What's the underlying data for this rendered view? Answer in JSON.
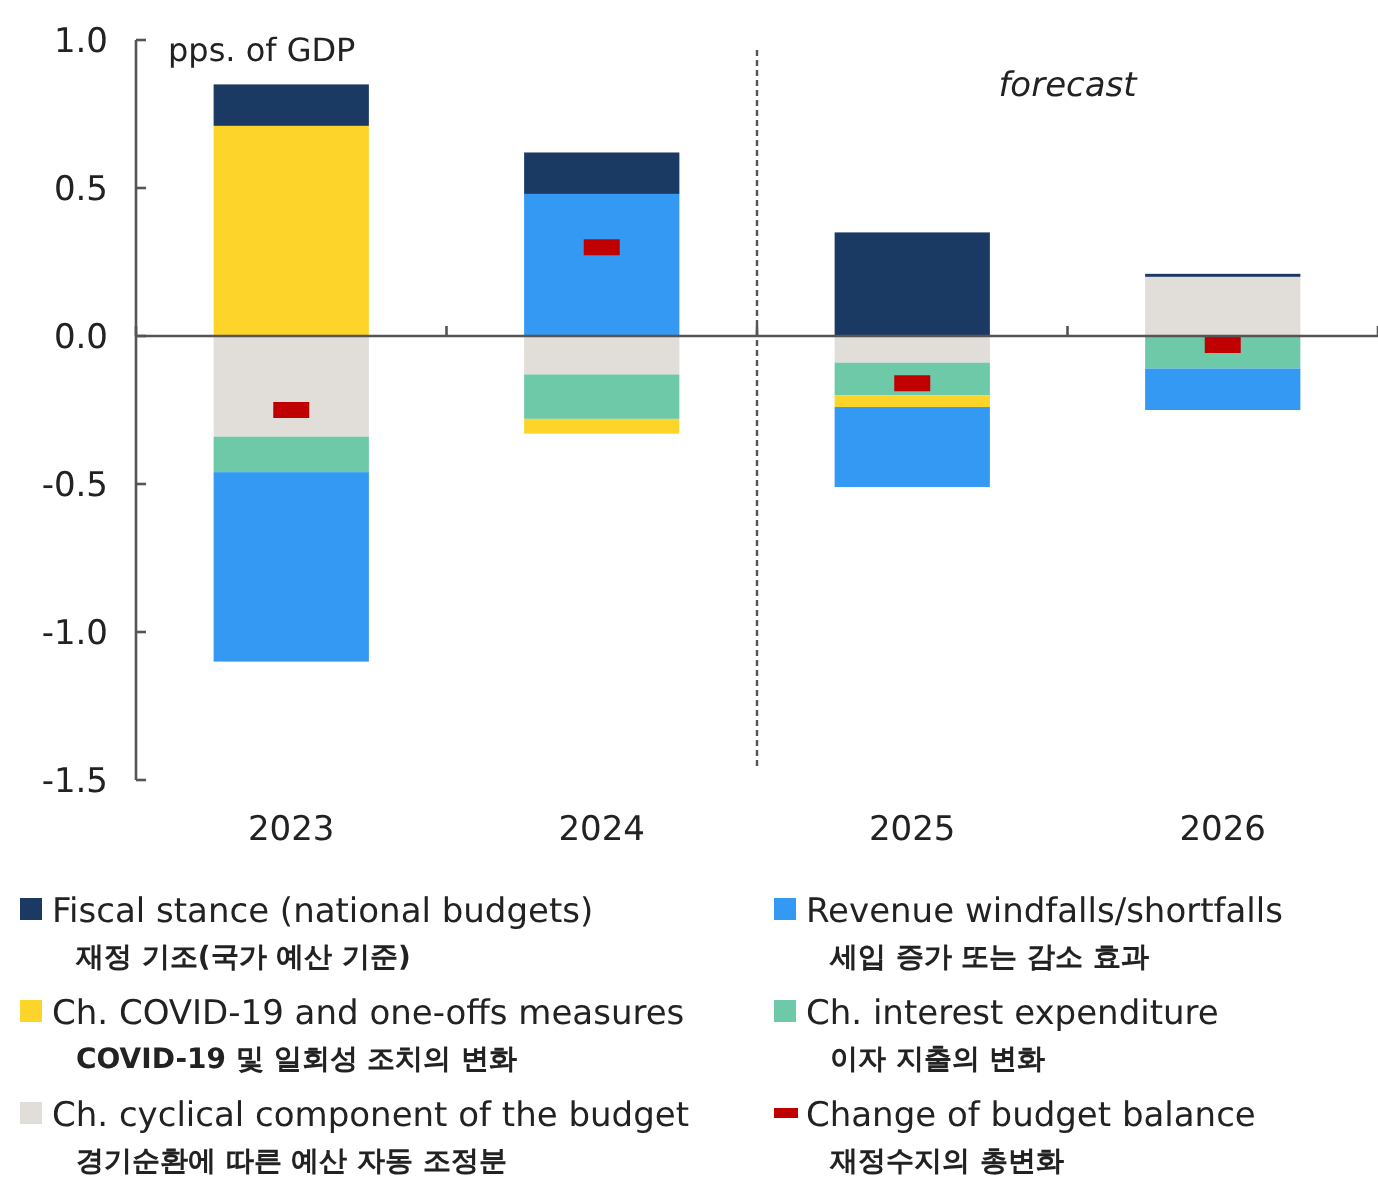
{
  "chart_data": {
    "type": "bar",
    "stacked": true,
    "ylabel": "pps. of GDP",
    "categories": [
      "2023",
      "2024",
      "2025",
      "2026"
    ],
    "ylim": [
      -1.5,
      1.0
    ],
    "yticks": [
      {
        "value": 1,
        "label": "1.0"
      },
      {
        "value": 0.5,
        "label": "0.5"
      },
      {
        "value": 0,
        "label": "0.0"
      },
      {
        "value": -0.5,
        "label": "-0.5"
      },
      {
        "value": -1,
        "label": "-1.0"
      },
      {
        "value": -1.5,
        "label": "-1.5"
      }
    ],
    "series": [
      {
        "name": "Ch. cyclical component of the budget\n경기순환에 따른 예산 자동 조정분",
        "color": "#e1ddd9",
        "values": [
          -0.34,
          -0.13,
          -0.09,
          0.2
        ]
      },
      {
        "name": "Ch. interest expenditure\n이자 지출의 변화",
        "color": "#6ec9a8",
        "values": [
          -0.12,
          -0.15,
          -0.11,
          -0.11
        ]
      },
      {
        "name": "Ch. COVID-19 and one-offs measures\nCOVID-19 및 일회성 조치의 변화",
        "color": "#fdd42a",
        "values": [
          0.71,
          -0.05,
          -0.04,
          null
        ]
      },
      {
        "name": "Revenue windfalls/shortfalls\n세입 증가 또는 감소 효과",
        "color": "#3399f3",
        "values": [
          -0.64,
          0.48,
          -0.27,
          -0.14
        ]
      },
      {
        "name": "Fiscal stance (national budgets)\n재정 기조(국가 예산 기준)",
        "color": "#1b3a63",
        "values": [
          0.14,
          0.14,
          0.35,
          0.01
        ]
      },
      {
        "name": "Change of budget balance\n재정수지의 총변화",
        "type": "scatter",
        "color": "#c00000",
        "values": [
          -0.25,
          0.3,
          -0.16,
          -0.03
        ]
      }
    ],
    "annotations": [
      "forecast"
    ],
    "legend": "bottom"
  }
}
